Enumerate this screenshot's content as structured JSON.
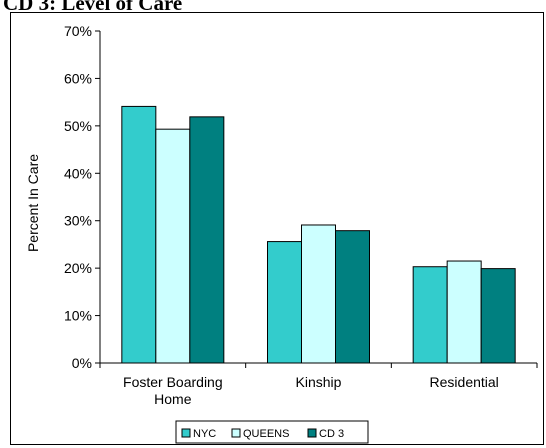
{
  "chart_data": {
    "type": "bar",
    "title": "CD 3: Level of Care",
    "ylabel": "Percent In Care",
    "xlabel": "",
    "categories": [
      "Foster Boarding Home",
      "Kinship",
      "Residential"
    ],
    "category_lines": [
      [
        "Foster Boarding",
        "Home"
      ],
      [
        "Kinship"
      ],
      [
        "Residential"
      ]
    ],
    "ylim": [
      0,
      0.7
    ],
    "yticks": [
      0,
      0.1,
      0.2,
      0.3,
      0.4,
      0.5,
      0.6,
      0.7
    ],
    "ytick_labels": [
      "0%",
      "10%",
      "20%",
      "30%",
      "40%",
      "50%",
      "60%",
      "70%"
    ],
    "grid": false,
    "legend_position": "bottom",
    "series": [
      {
        "name": "NYC",
        "values": [
          0.541,
          0.256,
          0.203
        ],
        "color": "#33CCCC"
      },
      {
        "name": "QUEENS",
        "values": [
          0.493,
          0.291,
          0.215
        ],
        "color": "#CCFFFF"
      },
      {
        "name": "CD 3",
        "values": [
          0.519,
          0.279,
          0.199
        ],
        "color": "#008080"
      }
    ]
  }
}
